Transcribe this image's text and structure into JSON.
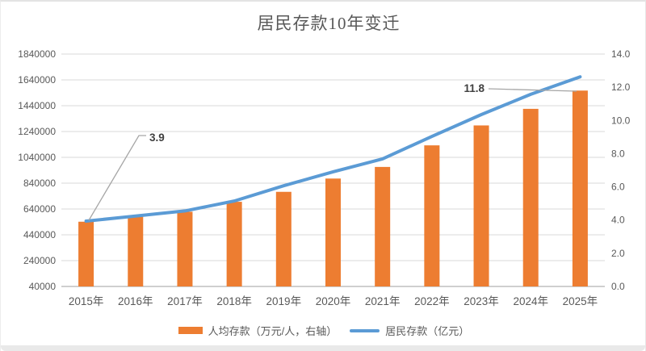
{
  "title": "居民存款10年变迁",
  "legend": {
    "bar_label": "人均存款（万元/人，右轴）",
    "line_label": "居民存款（亿元）"
  },
  "colors": {
    "bar": "#ED7D31",
    "line": "#5B9BD5",
    "gridline": "#D9D9D9",
    "axis_line": "#BFBFBF",
    "tick_text": "#595959",
    "annotation_text": "#404040",
    "leader_line": "#A6A6A6"
  },
  "chart_data": {
    "type": "bar",
    "subtype": "combo-bar-line",
    "title": "居民存款10年变迁",
    "categories": [
      "2015年",
      "2016年",
      "2017年",
      "2018年",
      "2019年",
      "2020年",
      "2021年",
      "2022年",
      "2023年",
      "2024年",
      "2025年"
    ],
    "series": [
      {
        "name": "人均存款（万元/人，右轴）",
        "type": "bar",
        "axis": "right",
        "color": "#ED7D31",
        "values": [
          3.9,
          4.2,
          4.5,
          5.1,
          5.7,
          6.5,
          7.2,
          8.5,
          9.7,
          10.7,
          11.8
        ]
      },
      {
        "name": "居民存款（亿元）",
        "type": "line",
        "axis": "left",
        "color": "#5B9BD5",
        "values": [
          546000,
          585000,
          625000,
          702000,
          820000,
          928000,
          1028000,
          1202000,
          1371000,
          1528000,
          1664000
        ]
      }
    ],
    "left_axis": {
      "min": 40000,
      "max": 1840000,
      "ticks": [
        "1840000",
        "1640000",
        "1440000",
        "1240000",
        "1040000",
        "840000",
        "640000",
        "440000",
        "240000",
        "40000"
      ]
    },
    "right_axis": {
      "min": 0,
      "max": 14,
      "ticks": [
        "14.0",
        "12.0",
        "10.0",
        "8.0",
        "6.0",
        "4.0",
        "2.0",
        "0.0"
      ]
    },
    "annotations": [
      {
        "text": "3.9",
        "series": "人均存款（万元/人，右轴）",
        "category": "2015年"
      },
      {
        "text": "11.8",
        "series": "人均存款（万元/人，右轴）",
        "category": "2025年"
      }
    ],
    "grid": true,
    "legend_position": "bottom",
    "xlabel": "",
    "ylabel": ""
  }
}
